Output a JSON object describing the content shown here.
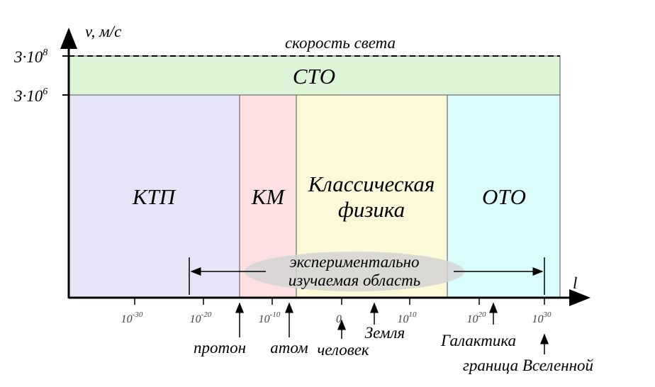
{
  "axes": {
    "y_label": "v, м/с",
    "x_label": "l",
    "y_ticks": [
      {
        "base": "3·10",
        "exp": "8"
      },
      {
        "base": "3·10",
        "exp": "6"
      }
    ],
    "x_ticks": [
      {
        "base": "10",
        "exp": "-30"
      },
      {
        "base": "10",
        "exp": "-20"
      },
      {
        "base": "10",
        "exp": "-10"
      },
      {
        "base": "0",
        "exp": ""
      },
      {
        "base": "10",
        "exp": "10"
      },
      {
        "base": "10",
        "exp": "20"
      },
      {
        "base": "10",
        "exp": "30"
      }
    ]
  },
  "speed_of_light": "скорость света",
  "regions": {
    "sto": "СТО",
    "ktp": "КТП",
    "km": "КМ",
    "classical": [
      "Классическая",
      "физика"
    ],
    "oto": "ОТО"
  },
  "experimental": [
    "экспериментально",
    "изучаемая область"
  ],
  "markers": {
    "proton": "протон",
    "atom": "атом",
    "human": "человек",
    "earth": "Земля",
    "galaxy": "Галактика",
    "universe": "граница Вселенной"
  }
}
